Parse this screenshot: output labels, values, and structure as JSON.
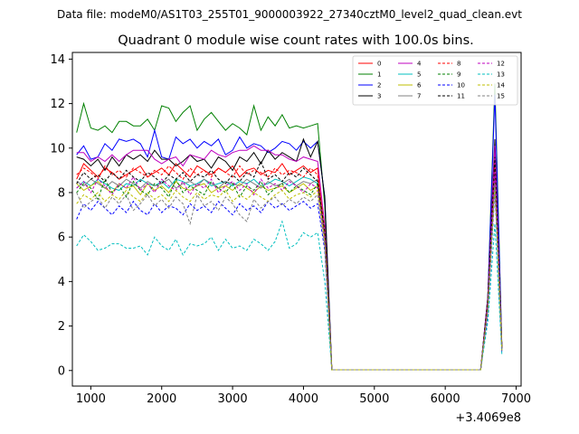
{
  "figure": {
    "suptitle": "Data file: modeM0/AS1T03_255T01_9000003922_27340cztM0_level2_quad_clean.evt",
    "title": "Quadrant 0 module wise count rates with 100.0s bins.",
    "x_offset_label": "+3.4069e8"
  },
  "chart_data": {
    "type": "line",
    "title": "Quadrant 0 module wise count rates with 100.0s bins.",
    "xlabel": "",
    "ylabel": "",
    "x_offset": 340690000,
    "xlim": [
      740,
      7070
    ],
    "ylim": [
      -0.7,
      14.3
    ],
    "xticks": [
      1000,
      2000,
      3000,
      4000,
      5000,
      6000,
      7000
    ],
    "yticks": [
      0,
      2,
      4,
      6,
      8,
      10,
      12,
      14
    ],
    "grid": false,
    "legend_position": "top-right",
    "x": [
      800,
      900,
      1000,
      1100,
      1200,
      1300,
      1400,
      1500,
      1600,
      1700,
      1800,
      1900,
      2000,
      2100,
      2200,
      2300,
      2400,
      2500,
      2600,
      2700,
      2800,
      2900,
      3000,
      3100,
      3200,
      3300,
      3400,
      3500,
      3600,
      3700,
      3800,
      3900,
      4000,
      4100,
      4200,
      4300,
      4400,
      4500,
      6500,
      6600,
      6700,
      6800
    ],
    "series": [
      {
        "name": "0",
        "color": "#ff0000",
        "dash": "solid",
        "values": [
          8.6,
          9.3,
          9.0,
          8.7,
          9.1,
          8.9,
          8.6,
          8.8,
          9.0,
          9.2,
          8.7,
          8.9,
          9.1,
          8.8,
          9.3,
          9.0,
          8.7,
          9.2,
          9.0,
          8.8,
          9.1,
          8.9,
          9.2,
          8.7,
          9.0,
          9.1,
          8.8,
          9.0,
          8.9,
          9.3,
          8.8,
          9.0,
          9.2,
          8.9,
          9.1,
          6.0,
          0.03,
          0.03,
          0.03,
          3.0,
          9.5,
          1.0
        ]
      },
      {
        "name": "1",
        "color": "#008000",
        "dash": "solid",
        "values": [
          10.7,
          12.0,
          10.9,
          10.8,
          11.0,
          10.7,
          11.2,
          11.2,
          11.0,
          11.0,
          11.3,
          10.8,
          11.9,
          11.8,
          11.2,
          11.6,
          11.9,
          10.8,
          11.3,
          11.6,
          11.2,
          10.8,
          11.1,
          10.9,
          10.6,
          11.9,
          10.8,
          11.4,
          11.0,
          11.5,
          10.9,
          11.0,
          10.9,
          11.0,
          11.1,
          7.4,
          0.03,
          0.03,
          0.03,
          3.2,
          12.9,
          1.0
        ]
      },
      {
        "name": "2",
        "color": "#0000ff",
        "dash": "solid",
        "values": [
          9.7,
          10.1,
          9.5,
          9.6,
          10.2,
          9.9,
          10.4,
          10.3,
          10.4,
          10.2,
          9.6,
          10.8,
          9.6,
          9.5,
          10.5,
          10.2,
          10.4,
          10.0,
          10.3,
          10.1,
          10.4,
          9.7,
          9.9,
          10.5,
          10.0,
          10.2,
          10.1,
          9.8,
          10.0,
          10.3,
          10.2,
          9.9,
          10.3,
          10.0,
          10.3,
          7.8,
          0.03,
          0.03,
          0.03,
          3.3,
          12.4,
          1.0
        ]
      },
      {
        "name": "3",
        "color": "#000000",
        "dash": "solid",
        "values": [
          9.6,
          9.5,
          9.2,
          9.5,
          9.0,
          9.6,
          9.2,
          9.7,
          9.5,
          9.7,
          9.4,
          9.9,
          9.5,
          9.5,
          9.2,
          9.4,
          9.7,
          9.4,
          9.5,
          9.1,
          9.6,
          9.4,
          9.0,
          9.6,
          9.4,
          9.8,
          9.3,
          9.9,
          9.5,
          9.8,
          9.6,
          9.4,
          10.4,
          9.6,
          10.3,
          7.8,
          0.03,
          0.03,
          0.03,
          3.3,
          10.4,
          1.0
        ]
      },
      {
        "name": "4",
        "color": "#bf00bf",
        "dash": "solid",
        "values": [
          9.8,
          9.8,
          9.4,
          9.6,
          9.4,
          9.7,
          9.4,
          9.7,
          9.9,
          9.9,
          9.9,
          9.5,
          9.3,
          9.5,
          9.6,
          9.2,
          9.7,
          9.6,
          9.5,
          9.9,
          9.7,
          9.6,
          9.8,
          9.9,
          9.9,
          10.1,
          9.9,
          9.9,
          9.7,
          9.7,
          9.5,
          9.4,
          9.6,
          9.5,
          9.4,
          6.5,
          0.03,
          0.03,
          0.03,
          3.2,
          10.1,
          1.0
        ]
      },
      {
        "name": "5",
        "color": "#00bfbf",
        "dash": "solid",
        "values": [
          8.2,
          8.5,
          8.3,
          8.6,
          8.4,
          8.2,
          8.1,
          8.4,
          8.3,
          8.6,
          8.4,
          8.3,
          8.5,
          8.2,
          8.6,
          8.5,
          8.3,
          8.4,
          8.6,
          8.3,
          8.4,
          8.5,
          8.3,
          8.5,
          8.4,
          8.6,
          8.3,
          8.4,
          8.6,
          8.5,
          8.3,
          8.5,
          8.7,
          8.6,
          8.4,
          6.0,
          0.03,
          0.03,
          0.03,
          3.0,
          8.7,
          1.0
        ]
      },
      {
        "name": "6",
        "color": "#bfbf00",
        "dash": "solid",
        "values": [
          8.4,
          8.1,
          8.3,
          8.5,
          8.2,
          8.0,
          8.4,
          8.2,
          8.3,
          7.9,
          8.4,
          8.1,
          8.3,
          8.0,
          8.5,
          8.2,
          8.1,
          8.3,
          8.4,
          8.0,
          8.2,
          8.3,
          8.1,
          8.4,
          8.2,
          8.0,
          8.3,
          8.1,
          8.2,
          8.3,
          8.0,
          8.2,
          8.4,
          8.1,
          8.3,
          5.9,
          0.03,
          0.03,
          0.03,
          2.9,
          8.7,
          1.0
        ]
      },
      {
        "name": "7",
        "color": "#808080",
        "dash": "solid",
        "values": [
          8.5,
          8.3,
          8.6,
          8.4,
          8.2,
          8.5,
          8.3,
          8.6,
          8.4,
          8.2,
          8.5,
          8.3,
          8.4,
          8.6,
          8.2,
          8.4,
          8.5,
          8.3,
          8.6,
          8.4,
          8.2,
          8.5,
          8.4,
          8.3,
          8.6,
          8.4,
          8.2,
          8.5,
          8.3,
          8.4,
          8.6,
          8.3,
          8.5,
          8.4,
          8.6,
          6.1,
          0.03,
          0.03,
          0.03,
          3.0,
          9.0,
          1.0
        ]
      },
      {
        "name": "8",
        "color": "#ff0000",
        "dash": "dashed",
        "values": [
          8.8,
          9.1,
          8.9,
          8.6,
          9.2,
          8.8,
          9.0,
          8.7,
          9.1,
          8.9,
          8.7,
          9.0,
          8.8,
          9.2,
          8.9,
          8.6,
          9.1,
          8.8,
          9.0,
          8.7,
          9.1,
          8.9,
          8.7,
          9.2,
          8.8,
          9.0,
          8.9,
          8.7,
          9.1,
          8.8,
          9.0,
          8.9,
          8.7,
          9.1,
          8.8,
          6.3,
          0.03,
          0.03,
          0.03,
          3.1,
          9.3,
          1.0
        ]
      },
      {
        "name": "9",
        "color": "#008000",
        "dash": "dashed",
        "values": [
          8.0,
          8.4,
          8.2,
          7.7,
          8.6,
          8.0,
          8.3,
          7.8,
          8.5,
          8.1,
          7.9,
          8.4,
          8.2,
          7.8,
          8.6,
          8.0,
          8.3,
          8.1,
          7.9,
          8.5,
          8.2,
          8.0,
          8.4,
          7.8,
          8.3,
          8.1,
          8.5,
          7.9,
          8.2,
          8.4,
          8.0,
          8.3,
          8.1,
          7.9,
          8.4,
          6.0,
          0.03,
          0.03,
          0.03,
          2.8,
          8.8,
          1.0
        ]
      },
      {
        "name": "10",
        "color": "#0000ff",
        "dash": "dashed",
        "values": [
          6.8,
          7.5,
          7.2,
          7.6,
          7.3,
          7.0,
          7.4,
          7.1,
          7.6,
          7.2,
          7.0,
          7.5,
          7.1,
          7.4,
          7.3,
          7.0,
          7.5,
          7.2,
          7.4,
          7.1,
          7.6,
          7.3,
          7.0,
          7.5,
          7.2,
          7.4,
          7.1,
          7.6,
          7.3,
          7.5,
          7.2,
          7.4,
          7.6,
          7.3,
          7.5,
          5.4,
          0.03,
          0.03,
          0.03,
          2.5,
          8.1,
          0.8
        ]
      },
      {
        "name": "11",
        "color": "#000000",
        "dash": "dashed",
        "values": [
          8.4,
          8.9,
          8.6,
          8.8,
          8.5,
          8.9,
          8.6,
          9.0,
          8.7,
          8.5,
          8.9,
          8.7,
          8.4,
          8.8,
          8.6,
          8.9,
          8.5,
          8.8,
          8.7,
          9.0,
          8.6,
          8.4,
          8.8,
          8.5,
          8.9,
          8.7,
          9.4,
          8.6,
          8.8,
          8.5,
          8.9,
          8.7,
          9.1,
          8.8,
          8.5,
          6.2,
          0.03,
          0.03,
          0.03,
          3.1,
          9.6,
          1.0
        ]
      },
      {
        "name": "12",
        "color": "#bf00bf",
        "dash": "dashed",
        "values": [
          8.2,
          8.5,
          8.0,
          8.6,
          8.3,
          7.9,
          8.4,
          8.2,
          8.7,
          8.1,
          8.4,
          8.0,
          8.6,
          8.3,
          8.1,
          8.5,
          7.9,
          8.4,
          8.2,
          8.6,
          8.0,
          8.3,
          8.5,
          8.1,
          8.4,
          7.9,
          8.6,
          8.2,
          8.4,
          8.1,
          8.5,
          8.3,
          8.0,
          8.4,
          8.2,
          5.9,
          0.03,
          0.03,
          0.03,
          2.9,
          8.9,
          1.0
        ]
      },
      {
        "name": "13",
        "color": "#00bfbf",
        "dash": "dashed",
        "values": [
          5.6,
          6.1,
          5.8,
          5.4,
          5.5,
          5.7,
          5.7,
          5.5,
          5.5,
          5.6,
          5.2,
          6.0,
          5.6,
          5.4,
          5.9,
          5.2,
          5.7,
          5.6,
          5.7,
          6.0,
          5.4,
          5.9,
          5.5,
          5.6,
          5.4,
          5.9,
          5.7,
          5.4,
          5.8,
          6.7,
          5.5,
          5.7,
          6.2,
          6.0,
          6.2,
          4.0,
          0.03,
          0.03,
          0.03,
          2.2,
          6.6,
          0.7
        ]
      },
      {
        "name": "14",
        "color": "#bfbf00",
        "dash": "dashed",
        "values": [
          7.5,
          7.9,
          7.7,
          8.0,
          7.6,
          7.9,
          7.7,
          8.1,
          7.8,
          7.6,
          8.0,
          7.7,
          7.9,
          7.6,
          8.1,
          7.8,
          7.6,
          8.0,
          7.7,
          7.9,
          7.8,
          8.1,
          7.6,
          7.9,
          7.7,
          8.0,
          7.8,
          7.6,
          7.9,
          8.1,
          7.7,
          7.9,
          8.0,
          7.8,
          8.1,
          5.8,
          0.03,
          0.03,
          0.03,
          2.8,
          8.3,
          0.9
        ]
      },
      {
        "name": "15",
        "color": "#808080",
        "dash": "dashed",
        "values": [
          8.0,
          7.3,
          7.6,
          7.8,
          7.3,
          7.8,
          7.5,
          7.9,
          7.2,
          7.5,
          7.9,
          7.4,
          7.7,
          7.3,
          7.8,
          7.5,
          6.6,
          7.9,
          7.4,
          7.6,
          7.2,
          7.8,
          7.5,
          7.0,
          6.7,
          7.7,
          7.3,
          7.6,
          7.8,
          7.4,
          7.7,
          7.5,
          7.8,
          7.6,
          7.9,
          5.6,
          0.03,
          0.03,
          0.03,
          2.7,
          8.4,
          0.9
        ]
      }
    ]
  }
}
